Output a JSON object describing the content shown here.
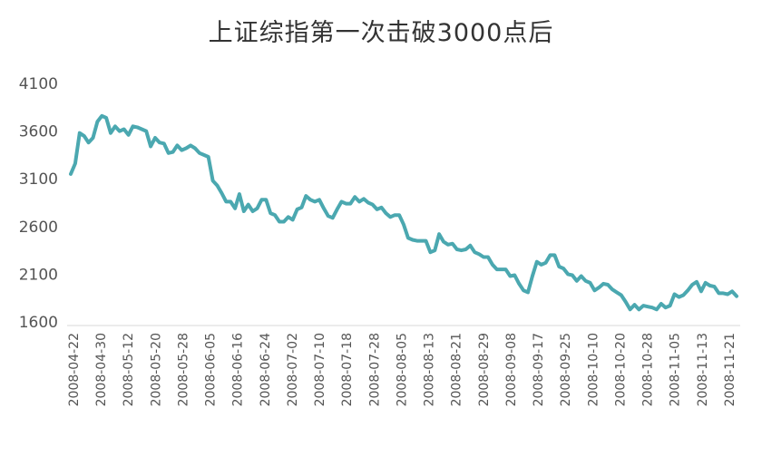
{
  "chart_data": {
    "type": "line",
    "title": "上证综指第一次击破3000点后",
    "xlabel": "",
    "ylabel": "",
    "ylim": [
      1600,
      4100
    ],
    "yticks": [
      "4100",
      "3600",
      "3100",
      "2600",
      "2100",
      "1600"
    ],
    "xticks": [
      "2008-04-22",
      "2008-04-30",
      "2008-05-12",
      "2008-05-20",
      "2008-05-28",
      "2008-06-05",
      "2008-06-16",
      "2008-06-24",
      "2008-07-02",
      "2008-07-10",
      "2008-07-18",
      "2008-07-28",
      "2008-08-05",
      "2008-08-13",
      "2008-08-21",
      "2008-08-29",
      "2008-09-08",
      "2008-09-17",
      "2008-09-25",
      "2008-10-10",
      "2008-10-20",
      "2008-10-28",
      "2008-11-05",
      "2008-11-13",
      "2008-11-21"
    ],
    "grid": false,
    "legend": "none",
    "line_color": "#4ba8b0",
    "series": [
      {
        "name": "",
        "values": [
          3150,
          3260,
          3580,
          3550,
          3480,
          3530,
          3700,
          3760,
          3740,
          3580,
          3650,
          3600,
          3620,
          3560,
          3650,
          3640,
          3620,
          3600,
          3440,
          3530,
          3480,
          3470,
          3370,
          3380,
          3450,
          3400,
          3420,
          3450,
          3420,
          3370,
          3350,
          3330,
          3080,
          3030,
          2950,
          2860,
          2860,
          2790,
          2940,
          2760,
          2830,
          2760,
          2790,
          2880,
          2880,
          2740,
          2720,
          2650,
          2650,
          2700,
          2670,
          2780,
          2800,
          2920,
          2880,
          2860,
          2880,
          2790,
          2710,
          2690,
          2780,
          2860,
          2840,
          2840,
          2910,
          2860,
          2890,
          2850,
          2830,
          2780,
          2800,
          2740,
          2700,
          2720,
          2720,
          2620,
          2480,
          2460,
          2450,
          2450,
          2450,
          2330,
          2350,
          2520,
          2440,
          2410,
          2420,
          2360,
          2350,
          2360,
          2400,
          2330,
          2310,
          2280,
          2280,
          2200,
          2150,
          2150,
          2150,
          2080,
          2090,
          2000,
          1930,
          1910,
          2080,
          2230,
          2200,
          2220,
          2300,
          2300,
          2180,
          2160,
          2100,
          2090,
          2030,
          2080,
          2030,
          2010,
          1930,
          1960,
          2000,
          1990,
          1940,
          1910,
          1880,
          1810,
          1730,
          1780,
          1730,
          1770,
          1760,
          1750,
          1730,
          1790,
          1750,
          1770,
          1890,
          1860,
          1880,
          1930,
          1990,
          2020,
          1920,
          2010,
          1980,
          1970,
          1900,
          1900,
          1890,
          1920,
          1870
        ]
      }
    ]
  }
}
